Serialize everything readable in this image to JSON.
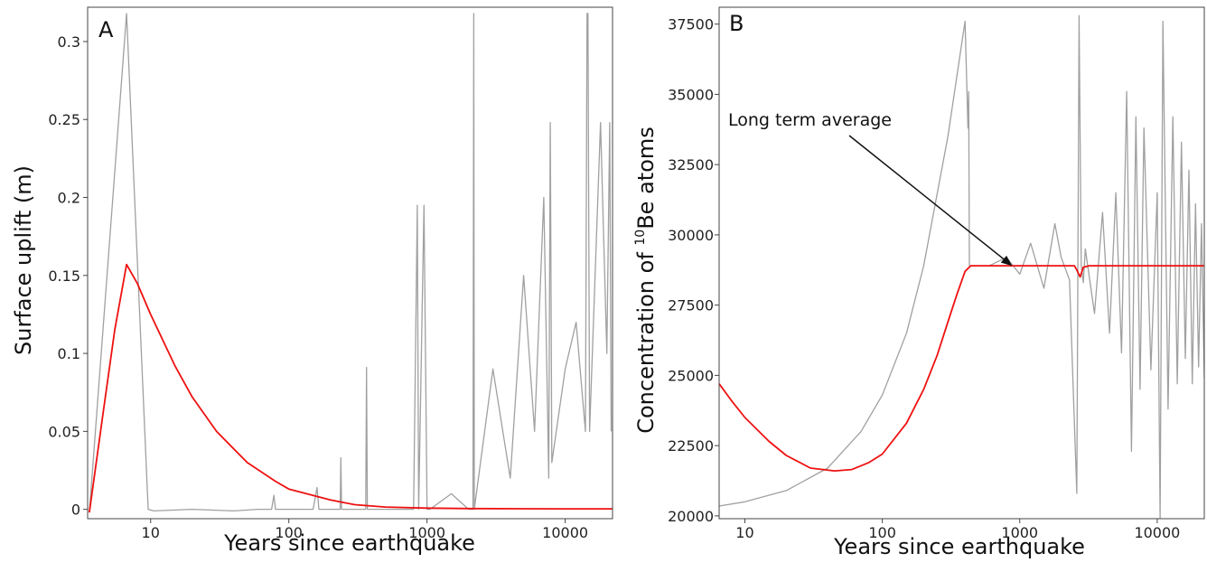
{
  "chart_data": [
    {
      "panel_label": "A",
      "type": "line",
      "xscale": "log",
      "xlabel": "Years since earthquake",
      "ylabel": "Surface uplift (m)",
      "xlim": [
        3.5,
        22000
      ],
      "ylim": [
        -0.006,
        0.322
      ],
      "xticks": [
        10,
        100,
        1000,
        10000
      ],
      "xtick_labels": [
        "10",
        "100",
        "1000",
        "10000"
      ],
      "yticks": [
        0,
        0.05,
        0.1,
        0.15,
        0.2,
        0.25,
        0.3
      ],
      "ytick_labels": [
        "0",
        "0.05",
        "0.1",
        "0.15",
        "0.2",
        "0.25",
        "0.3"
      ],
      "grid": false,
      "legend": "none",
      "series": [
        {
          "color": "#a0a0a0",
          "description_values": "instantaneous uplift",
          "x": [
            3.6,
            6.7,
            9.6,
            10.5,
            20,
            40,
            60,
            75,
            78,
            80,
            100,
            150,
            160,
            165,
            170,
            200,
            235,
            238,
            241,
            300,
            360,
            365,
            370,
            420,
            500,
            600,
            800,
            850,
            870,
            950,
            1000,
            1050,
            1500,
            2000,
            2150,
            2180,
            2200,
            3000,
            4000,
            5000,
            6000,
            7000,
            7600,
            7800,
            8000,
            10000,
            12000,
            14000,
            14400,
            14600,
            15000,
            18000,
            20000,
            21000,
            21500
          ],
          "values": [
            -0.002,
            0.318,
            0.0,
            -0.001,
            0.0,
            -0.001,
            0.0,
            0.0,
            0.009,
            0.0,
            0.0,
            0.0,
            0.014,
            0.0,
            0.0,
            0.0,
            0.0,
            0.033,
            0.0,
            0.0,
            0.0,
            0.091,
            0.0,
            0.0,
            0.0,
            0.0,
            0.0,
            0.195,
            0.0,
            0.195,
            0.0,
            0.0,
            0.01,
            0.0,
            0.0,
            0.318,
            0.0,
            0.09,
            0.02,
            0.15,
            0.05,
            0.2,
            0.02,
            0.248,
            0.03,
            0.09,
            0.12,
            0.05,
            0.318,
            0.318,
            0.05,
            0.248,
            0.1,
            0.248,
            0.05
          ]
        },
        {
          "color": "#ee1111",
          "description_values": "running average uplift",
          "x": [
            3.6,
            4.5,
            5.5,
            6.7,
            8,
            10,
            15,
            20,
            30,
            50,
            80,
            100,
            200,
            300,
            500,
            1000,
            2000,
            5000,
            10000,
            22000
          ],
          "values": [
            -0.002,
            0.06,
            0.115,
            0.157,
            0.145,
            0.125,
            0.092,
            0.072,
            0.05,
            0.03,
            0.018,
            0.013,
            0.006,
            0.003,
            0.0015,
            0.0008,
            0.0005,
            0.0004,
            0.0003,
            0.0003
          ]
        }
      ]
    },
    {
      "panel_label": "B",
      "type": "line",
      "xscale": "log",
      "xlabel": "Years since earthquake",
      "ylabel_prefix": "Concentration of ",
      "ylabel_sup": "10",
      "ylabel_suffix": "Be atoms",
      "xlim": [
        6.5,
        22000
      ],
      "ylim": [
        19900,
        38100
      ],
      "xticks": [
        10,
        100,
        1000,
        10000
      ],
      "xtick_labels": [
        "10",
        "100",
        "1000",
        "10000"
      ],
      "yticks": [
        20000,
        22500,
        25000,
        27500,
        30000,
        32500,
        35000,
        37500
      ],
      "ytick_labels": [
        "20000",
        "22500",
        "25000",
        "27500",
        "30000",
        "32500",
        "35000",
        "37500"
      ],
      "grid": false,
      "legend": "none",
      "annotation": {
        "text": "Long term average",
        "target_x": 880,
        "target_y": 28800
      },
      "series": [
        {
          "color": "#a0a0a0",
          "description_values": "instantaneous concentration",
          "x": [
            6.5,
            10,
            20,
            40,
            70,
            100,
            150,
            200,
            300,
            400,
            420,
            425,
            430,
            440,
            450,
            460,
            600,
            800,
            1000,
            1200,
            1500,
            1800,
            2000,
            2300,
            2600,
            2700,
            2800,
            2900,
            3000,
            3500,
            4000,
            4500,
            5000,
            5500,
            6000,
            6500,
            7000,
            7500,
            8000,
            9000,
            10000,
            10500,
            11000,
            12000,
            13000,
            14000,
            15000,
            16000,
            17000,
            18000,
            19000,
            20000,
            21000,
            22000
          ],
          "values": [
            20350,
            20500,
            20900,
            21700,
            23000,
            24300,
            26500,
            28900,
            33500,
            37600,
            33800,
            35100,
            28900,
            28900,
            28900,
            28900,
            28900,
            29200,
            28600,
            29700,
            28100,
            30400,
            29200,
            28400,
            20800,
            37800,
            28900,
            28300,
            29500,
            27200,
            30800,
            26500,
            31500,
            25800,
            35100,
            22300,
            34200,
            24500,
            33800,
            25200,
            31500,
            19900,
            37600,
            23800,
            34200,
            24700,
            33300,
            25600,
            32300,
            24700,
            31100,
            25300,
            30400,
            24900
          ]
        },
        {
          "color": "#ee1111",
          "description_values": "average concentration",
          "x": [
            6.5,
            8,
            10,
            15,
            20,
            30,
            45,
            60,
            80,
            100,
            150,
            200,
            250,
            300,
            350,
            400,
            440,
            500,
            700,
            1000,
            1500,
            2000,
            2500,
            2600,
            2750,
            2900,
            3200,
            4000,
            6000,
            10000,
            22000
          ],
          "values": [
            24700,
            24100,
            23500,
            22650,
            22150,
            21700,
            21600,
            21650,
            21900,
            22200,
            23300,
            24500,
            25700,
            26900,
            27900,
            28700,
            28900,
            28900,
            28900,
            28900,
            28900,
            28900,
            28900,
            28750,
            28500,
            28850,
            28900,
            28900,
            28900,
            28900,
            28900
          ]
        }
      ]
    }
  ]
}
